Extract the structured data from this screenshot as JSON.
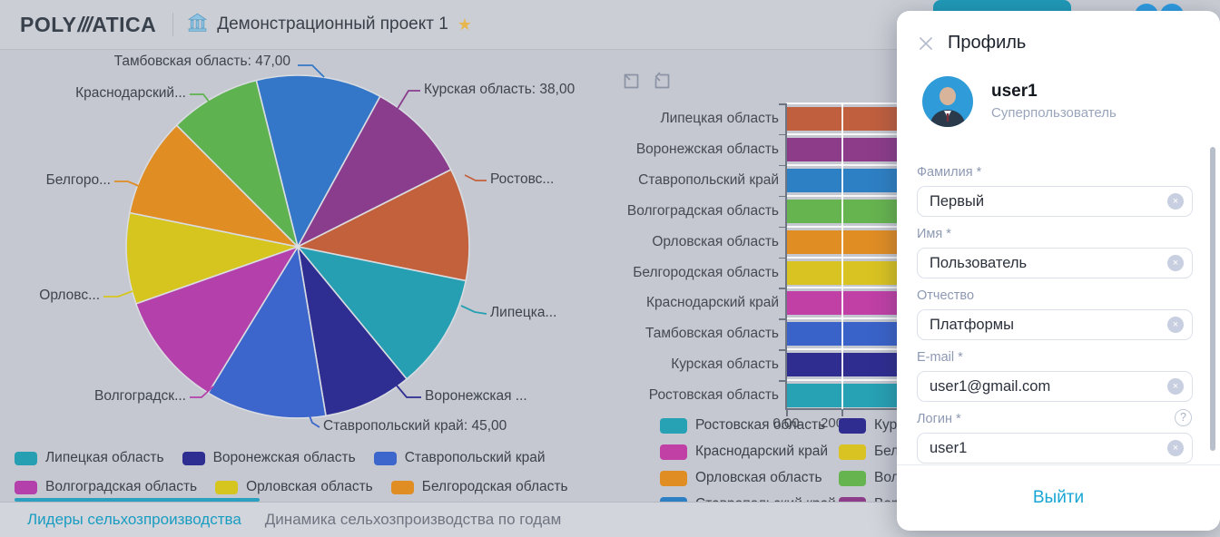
{
  "header": {
    "logo": {
      "part1": "POLY",
      "slashes": "///",
      "part2": "ATICA"
    },
    "project_title": "Демонстрационный проект 1",
    "action_icons": [
      "comment-icon",
      "fullscreen-icon",
      "filter-icon"
    ]
  },
  "tabs": [
    {
      "label": "Лидеры сельхозпроизводства",
      "active": true
    },
    {
      "label": "Динамика сельхозпроизводства по годам",
      "active": false
    }
  ],
  "profile": {
    "title": "Профиль",
    "username": "user1",
    "role": "Суперпользователь",
    "fields": [
      {
        "name": "lastname",
        "label": "Фамилия *",
        "value": "Первый",
        "help": false
      },
      {
        "name": "firstname",
        "label": "Имя *",
        "value": "Пользователь",
        "help": false
      },
      {
        "name": "middlename",
        "label": "Отчество",
        "value": "Платформы",
        "help": false
      },
      {
        "name": "email",
        "label": "E-mail *",
        "value": "user1@gmail.com",
        "help": false
      },
      {
        "name": "login",
        "label": "Логин *",
        "value": "user1",
        "help": true
      }
    ],
    "logout_label": "Выйти"
  },
  "chart_data": [
    {
      "type": "pie",
      "note": "values for truncated callouts estimated from slice angles",
      "series": [
        {
          "label": "Тамбовская область",
          "value": 47,
          "color": "#3477c8",
          "callout": "Тамбовская область: 47,00"
        },
        {
          "label": "Курская область",
          "value": 38,
          "color": "#8b3d8d",
          "callout": "Курская область: 38,00"
        },
        {
          "label": "Ростовская область",
          "value": 42,
          "color": "#c3613c",
          "callout": "Ростовс..."
        },
        {
          "label": "Липецкая область",
          "value": 43,
          "color": "#269fb2",
          "callout": "Липецка..."
        },
        {
          "label": "Воронежская область",
          "value": 33,
          "color": "#2e2d91",
          "callout": "Воронежская ..."
        },
        {
          "label": "Ставропольский край",
          "value": 45,
          "color": "#3c66cb",
          "callout": "Ставропольский край: 45,00"
        },
        {
          "label": "Волгоградская область",
          "value": 43,
          "color": "#b441ab",
          "callout": "Волгоградск..."
        },
        {
          "label": "Орловская область",
          "value": 34,
          "color": "#d7c51f",
          "callout": "Орловс..."
        },
        {
          "label": "Белгородская область",
          "value": 37,
          "color": "#e08d24",
          "callout": "Белгоро..."
        },
        {
          "label": "Краснодарский край",
          "value": 34,
          "color": "#5eb250",
          "callout": "Краснодарский..."
        }
      ],
      "legend_rows": [
        [
          {
            "label": "Липецкая область",
            "color": "#269fb2"
          },
          {
            "label": "Воронежская область",
            "color": "#2e2d91"
          },
          {
            "label": "Ставропольский край",
            "color": "#3c66cb"
          }
        ],
        [
          {
            "label": "Волгоградская область",
            "color": "#b441ab"
          },
          {
            "label": "Орловская область",
            "color": "#d7c51f"
          },
          {
            "label": "Белгородская область",
            "color": "#e08d24"
          }
        ]
      ]
    },
    {
      "type": "bar",
      "orientation": "horizontal",
      "note": "bar lengths truncated by the profile panel overlay; true values not visible",
      "categories": [
        "Липецкая область",
        "Воронежская область",
        "Ставропольский край",
        "Волгоградская область",
        "Орловская область",
        "Белгородская область",
        "Краснодарский край",
        "Тамбовская область",
        "Курская область",
        "Ростовская область"
      ],
      "colors": [
        "#c05f3e",
        "#8d3c8a",
        "#2e80c4",
        "#66b44f",
        "#e08d24",
        "#d9c322",
        "#c040a6",
        "#3a63c9",
        "#2f2d90",
        "#27a1b4"
      ],
      "values": [
        null,
        null,
        null,
        null,
        null,
        null,
        null,
        null,
        null,
        null
      ],
      "x_ticks": [
        "0,00",
        "200,00"
      ],
      "x_tick_spacing_value": 200,
      "legend_rows": [
        [
          {
            "label": "Ростовская область",
            "color": "#27a1b4"
          },
          {
            "label": "Курская область",
            "color": "#2f2d90"
          }
        ],
        [
          {
            "label": "Краснодарский край",
            "color": "#c040a6"
          },
          {
            "label": "Белгородская область",
            "color": "#d9c322"
          }
        ],
        [
          {
            "label": "Орловская область",
            "color": "#e08d24"
          },
          {
            "label": "Волгоградская область",
            "color": "#66b44f"
          }
        ],
        [
          {
            "label": "Ставропольский край",
            "color": "#2e80c4"
          },
          {
            "label": "Воронежская область",
            "color": "#8d3c8a"
          }
        ]
      ]
    }
  ]
}
